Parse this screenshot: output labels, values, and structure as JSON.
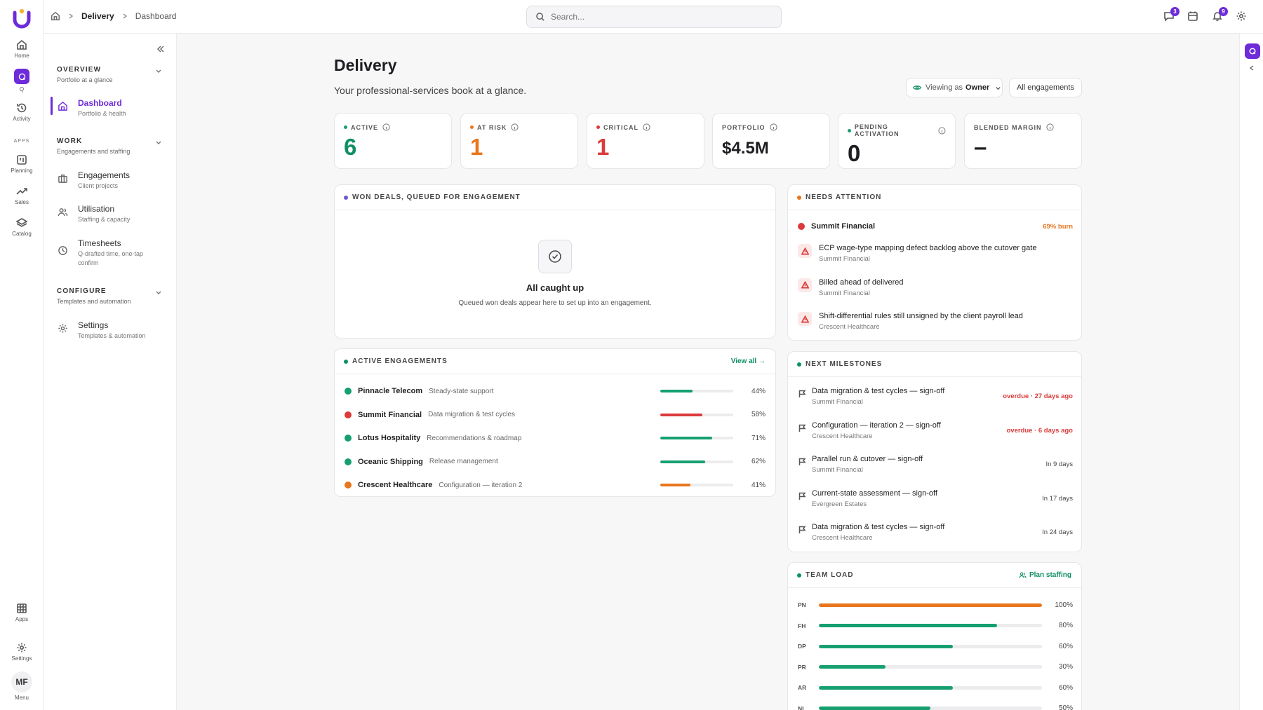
{
  "rail": {
    "items": [
      {
        "label": "Home"
      },
      {
        "label": "Q"
      },
      {
        "label": "Activity"
      },
      {
        "label": "Planning"
      },
      {
        "label": "Sales"
      },
      {
        "label": "Catalog"
      },
      {
        "label": "Apps"
      },
      {
        "label": "Settings"
      },
      {
        "label": "Menu"
      }
    ],
    "apps_label": "APPS",
    "avatar_initials": "MF"
  },
  "breadcrumb": {
    "section": "Delivery",
    "page": "Dashboard"
  },
  "search": {
    "placeholder": "Search..."
  },
  "topbar": {
    "messages_count": "3",
    "notifications_count": "9"
  },
  "sidebar": {
    "sections": [
      {
        "title": "OVERVIEW",
        "subtitle": "Portfolio at a glance"
      },
      {
        "title": "WORK",
        "subtitle": "Engagements and staffing"
      },
      {
        "title": "CONFIGURE",
        "subtitle": "Templates and automation"
      }
    ],
    "items": [
      {
        "label": "Dashboard",
        "sub": "Portfolio & health",
        "icon": "home-icon",
        "active": true
      },
      {
        "label": "Engagements",
        "sub": "Client projects",
        "icon": "briefcase-icon"
      },
      {
        "label": "Utilisation",
        "sub": "Staffing & capacity",
        "icon": "users-icon"
      },
      {
        "label": "Timesheets",
        "sub": "Q-drafted time, one-tap confirm",
        "icon": "clock-icon"
      },
      {
        "label": "Settings",
        "sub": "Templates & automation",
        "icon": "gear-icon"
      }
    ]
  },
  "page": {
    "title": "Delivery",
    "subtitle": "Your professional-services book at a glance.",
    "viewing_prefix": "Viewing as",
    "viewing_role": "Owner",
    "scope_button": "All engagements"
  },
  "kpis": [
    {
      "label": "ACTIVE",
      "value": "6",
      "color": "#0f8f66"
    },
    {
      "label": "AT RISK",
      "value": "1",
      "color": "#e8761e"
    },
    {
      "label": "CRITICAL",
      "value": "1",
      "color": "#dc3b3b"
    },
    {
      "label": "PORTFOLIO",
      "value": "$4.5M",
      "color": "#1d1d22"
    },
    {
      "label": "PENDING ACTIVATION",
      "value": "0",
      "color": "#1d1d22"
    },
    {
      "label": "BLENDED MARGIN",
      "value": "–",
      "color": "#1d1d22"
    }
  ],
  "won_deals": {
    "title": "WON DEALS, QUEUED FOR ENGAGEMENT",
    "empty_title": "All caught up",
    "empty_text": "Queued won deals appear here to set up into an engagement."
  },
  "active_engagements": {
    "title": "ACTIVE ENGAGEMENTS",
    "view_all": "View all →",
    "rows": [
      {
        "name": "Pinnacle Telecom",
        "desc": "Steady-state support",
        "pct": "44%",
        "progress": 0.44,
        "color": "#16a06f"
      },
      {
        "name": "Summit Financial",
        "desc": "Data migration & test cycles",
        "pct": "58%",
        "progress": 0.58,
        "color": "#dc3b3b"
      },
      {
        "name": "Lotus Hospitality",
        "desc": "Recommendations & roadmap",
        "pct": "71%",
        "progress": 0.71,
        "color": "#16a06f"
      },
      {
        "name": "Oceanic Shipping",
        "desc": "Release management",
        "pct": "62%",
        "progress": 0.62,
        "color": "#16a06f"
      },
      {
        "name": "Crescent Healthcare",
        "desc": "Configuration — iteration 2",
        "pct": "41%",
        "progress": 0.41,
        "color": "#e8761e"
      }
    ]
  },
  "needs_attention": {
    "title": "NEEDS ATTENTION",
    "lead_client": "Summit Financial",
    "lead_burn": "69% burn",
    "items": [
      {
        "title": "ECP wage-type mapping defect backlog above the cutover gate",
        "client": "Summit Financial"
      },
      {
        "title": "Billed ahead of delivered",
        "client": "Summit Financial"
      },
      {
        "title": "Shift-differential rules still unsigned by the client payroll lead",
        "client": "Crescent Healthcare"
      }
    ]
  },
  "next_milestones": {
    "title": "NEXT MILESTONES",
    "items": [
      {
        "title": "Data migration & test cycles — sign-off",
        "client": "Summit Financial",
        "due": "overdue · 27 days ago",
        "overdue": true
      },
      {
        "title": "Configuration — iteration 2 — sign-off",
        "client": "Crescent Healthcare",
        "due": "overdue · 6 days ago",
        "overdue": true
      },
      {
        "title": "Parallel run & cutover — sign-off",
        "client": "Summit Financial",
        "due": "In 9 days",
        "overdue": false
      },
      {
        "title": "Current-state assessment — sign-off",
        "client": "Evergreen Estates",
        "due": "In 17 days",
        "overdue": false
      },
      {
        "title": "Data migration & test cycles — sign-off",
        "client": "Crescent Healthcare",
        "due": "In 24 days",
        "overdue": false
      }
    ]
  },
  "team_load": {
    "title": "TEAM LOAD",
    "action": "Plan staffing",
    "rows": [
      {
        "initials": "PN",
        "pct": "100%",
        "load": 1.0,
        "color": "#e8761e"
      },
      {
        "initials": "FH",
        "pct": "80%",
        "load": 0.8,
        "color": "#16a06f"
      },
      {
        "initials": "DP",
        "pct": "60%",
        "load": 0.6,
        "color": "#16a06f"
      },
      {
        "initials": "PR",
        "pct": "30%",
        "load": 0.3,
        "color": "#16a06f"
      },
      {
        "initials": "AR",
        "pct": "60%",
        "load": 0.6,
        "color": "#16a06f"
      },
      {
        "initials": "NI",
        "pct": "50%",
        "load": 0.5,
        "color": "#16a06f"
      }
    ]
  }
}
